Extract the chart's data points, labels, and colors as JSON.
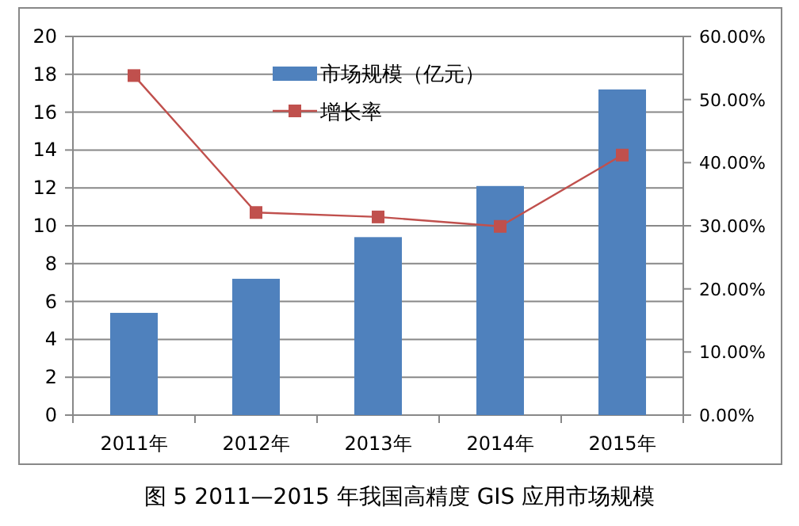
{
  "chart_data": {
    "type": "bar",
    "title": "图 5 2011—2015 年我国高精度 GIS 应用市场规模",
    "categories": [
      "2011年",
      "2012年",
      "2013年",
      "2014年",
      "2015年"
    ],
    "series": [
      {
        "name": "市场规模（亿元）",
        "color": "#4f81bd",
        "values": [
          5.4,
          7.2,
          9.4,
          12.1,
          17.2
        ]
      },
      {
        "name": "增长率",
        "type": "line",
        "axis": "y2",
        "color": "#c0504d",
        "marker": "square",
        "values": [
          53.8,
          32.1,
          31.4,
          29.9,
          41.2
        ]
      }
    ],
    "ylim": [
      0,
      20
    ],
    "yticks": [
      0,
      2,
      4,
      6,
      8,
      10,
      12,
      14,
      16,
      18,
      20
    ],
    "y2lim": [
      0,
      60
    ],
    "y2ticks": [
      {
        "value": 0,
        "label": "0.00%"
      },
      {
        "value": 10,
        "label": "10.00%"
      },
      {
        "value": 20,
        "label": "20.00%"
      },
      {
        "value": 30,
        "label": "30.00%"
      },
      {
        "value": 40,
        "label": "40.00%"
      },
      {
        "value": 50,
        "label": "50.00%"
      },
      {
        "value": 60,
        "label": "60.00%"
      }
    ],
    "grid": "y",
    "legend": "top"
  }
}
